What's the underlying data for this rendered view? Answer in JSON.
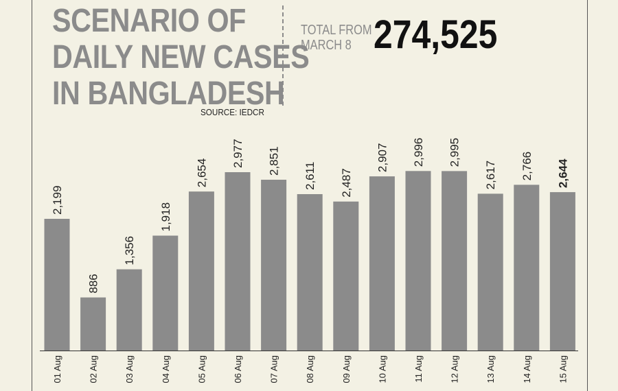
{
  "header": {
    "title_lines": [
      "SCENARIO OF",
      "DAILY NEW CASES",
      "IN BANGLADESH"
    ],
    "source": "SOURCE: IEDCR",
    "total_label_lines": [
      "TOTAL FROM",
      "MARCH 8"
    ],
    "total_value": "274,525"
  },
  "colors": {
    "bar": "#8b8b8b",
    "title": "#8b8b8b",
    "background": "#f3f1e4"
  },
  "chart_data": {
    "type": "bar",
    "title": "SCENARIO OF DAILY NEW CASES IN BANGLADESH",
    "categories": [
      "01 Aug",
      "02 Aug",
      "03 Aug",
      "04 Aug",
      "05 Aug",
      "06 Aug",
      "07 Aug",
      "08 Aug",
      "09 Aug",
      "10 Aug",
      "11 Aug",
      "12 Aug",
      "13 Aug",
      "14 Aug",
      "15 Aug"
    ],
    "values": [
      2199,
      886,
      1356,
      1918,
      2654,
      2977,
      2851,
      2611,
      2487,
      2907,
      2996,
      2995,
      2617,
      2766,
      2644
    ],
    "value_labels": [
      "2,199",
      "886",
      "1,356",
      "1,918",
      "2,654",
      "2,977",
      "2,851",
      "2,611",
      "2,487",
      "2,907",
      "2,996",
      "2,995",
      "2,617",
      "2,766",
      "2,644"
    ],
    "highlighted_index": 14,
    "xlabel": "",
    "ylabel": "",
    "ylim": [
      0,
      3000
    ],
    "grid": false,
    "legend": "none"
  }
}
